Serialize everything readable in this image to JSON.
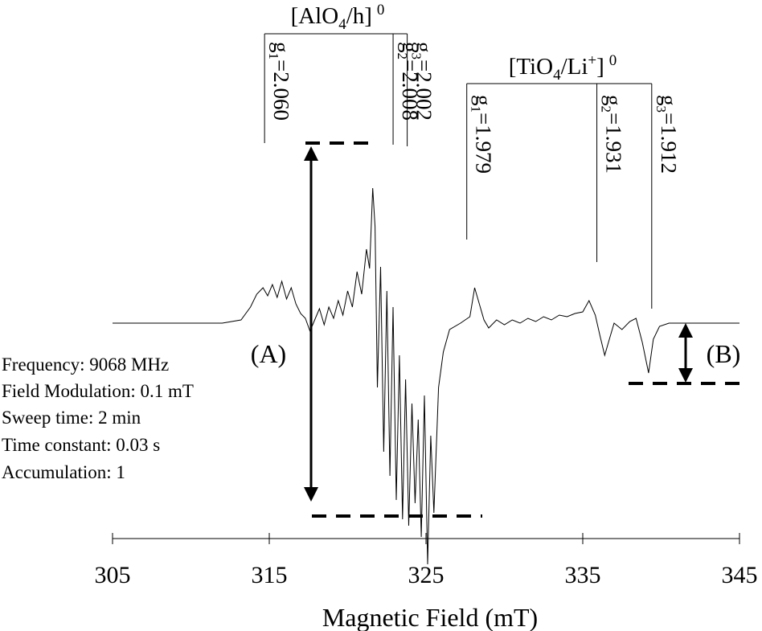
{
  "chart_data": {
    "type": "line",
    "xlabel": "Magnetic Field (mT)",
    "ylabel": "",
    "xlim": [
      305,
      345
    ],
    "xticks": [
      305,
      315,
      325,
      335,
      345
    ],
    "xtick_labels": [
      "305",
      "315",
      "325",
      "335",
      "345"
    ],
    "grid": false,
    "legend": "none",
    "series": [
      {
        "points": [
          [
            305.0,
            0.0
          ],
          [
            312.0,
            0.0
          ],
          [
            313.2,
            0.02
          ],
          [
            313.8,
            0.1
          ],
          [
            314.2,
            0.18
          ],
          [
            314.6,
            0.22
          ],
          [
            314.9,
            0.17
          ],
          [
            315.2,
            0.24
          ],
          [
            315.5,
            0.16
          ],
          [
            315.8,
            0.26
          ],
          [
            316.1,
            0.15
          ],
          [
            316.4,
            0.22
          ],
          [
            316.7,
            0.12
          ],
          [
            317.0,
            0.06
          ],
          [
            317.3,
            0.03
          ],
          [
            317.6,
            -0.05
          ],
          [
            317.9,
            0.02
          ],
          [
            318.2,
            0.09
          ],
          [
            318.5,
            -0.01
          ],
          [
            318.8,
            0.1
          ],
          [
            319.1,
            0.03
          ],
          [
            319.4,
            0.14
          ],
          [
            319.7,
            0.05
          ],
          [
            320.0,
            0.2
          ],
          [
            320.3,
            0.1
          ],
          [
            320.6,
            0.32
          ],
          [
            320.9,
            0.18
          ],
          [
            321.2,
            0.46
          ],
          [
            321.4,
            0.34
          ],
          [
            321.6,
            0.84
          ],
          [
            321.75,
            0.6
          ],
          [
            321.9,
            -0.4
          ],
          [
            322.1,
            0.35
          ],
          [
            322.3,
            -0.8
          ],
          [
            322.5,
            0.2
          ],
          [
            322.7,
            -0.95
          ],
          [
            322.9,
            0.1
          ],
          [
            323.1,
            -1.1
          ],
          [
            323.3,
            -0.2
          ],
          [
            323.5,
            -1.22
          ],
          [
            323.7,
            -0.35
          ],
          [
            323.9,
            -1.26
          ],
          [
            324.1,
            -0.5
          ],
          [
            324.3,
            -1.12
          ],
          [
            324.5,
            -0.6
          ],
          [
            324.7,
            -1.33
          ],
          [
            324.9,
            -0.45
          ],
          [
            325.1,
            -1.5
          ],
          [
            325.3,
            -0.7
          ],
          [
            325.5,
            -1.18
          ],
          [
            325.8,
            -0.4
          ],
          [
            326.1,
            -0.18
          ],
          [
            326.5,
            -0.04
          ],
          [
            327.2,
            0.0
          ],
          [
            327.8,
            0.04
          ],
          [
            328.1,
            0.22
          ],
          [
            328.4,
            0.12
          ],
          [
            328.7,
            0.02
          ],
          [
            329.0,
            -0.03
          ],
          [
            329.5,
            0.02
          ],
          [
            330.0,
            -0.01
          ],
          [
            330.5,
            0.02
          ],
          [
            331.0,
            0.0
          ],
          [
            331.5,
            0.03
          ],
          [
            332.0,
            0.01
          ],
          [
            332.5,
            0.04
          ],
          [
            333.0,
            0.02
          ],
          [
            333.5,
            0.05
          ],
          [
            334.0,
            0.04
          ],
          [
            334.5,
            0.06
          ],
          [
            335.0,
            0.07
          ],
          [
            335.4,
            0.14
          ],
          [
            335.8,
            0.05
          ],
          [
            336.1,
            -0.08
          ],
          [
            336.4,
            -0.2
          ],
          [
            336.7,
            -0.1
          ],
          [
            337.0,
            0.0
          ],
          [
            337.5,
            -0.04
          ],
          [
            338.0,
            0.01
          ],
          [
            338.4,
            0.03
          ],
          [
            338.8,
            -0.12
          ],
          [
            339.2,
            -0.31
          ],
          [
            339.5,
            -0.1
          ],
          [
            339.9,
            -0.02
          ],
          [
            340.5,
            0.0
          ],
          [
            345.0,
            0.0
          ]
        ]
      }
    ],
    "groups": [
      {
        "label_main": "[AlO",
        "label_sub": "4",
        "label_rest": "/h]",
        "label_sup": "0",
        "lines": [
          {
            "g_sub": "1",
            "value": "=2.060",
            "x": 314.7
          },
          {
            "g_sub": "2",
            "value": "=2.008",
            "x": 322.9
          },
          {
            "g_sub": "3",
            "value": "=2.002",
            "x": 323.8
          }
        ]
      },
      {
        "label_main": "[TiO",
        "label_sub": "4",
        "label_rest": "/Li",
        "label_sup_inner": "+",
        "label_tail": "]",
        "label_sup": "0",
        "lines": [
          {
            "g_sub": "1",
            "value": "=1.979",
            "x": 327.6
          },
          {
            "g_sub": "2",
            "value": "=1.931",
            "x": 335.9
          },
          {
            "g_sub": "3",
            "value": "=1.912",
            "x": 339.4
          }
        ]
      }
    ],
    "annotations": {
      "marker_a": "(A)",
      "marker_b": "(B)",
      "parameters": [
        "Frequency: 9068 MHz",
        "Field Modulation: 0.1 mT",
        "Sweep time: 2 min",
        "Time constant: 0.03 s",
        "Accumulation: 1"
      ]
    }
  }
}
